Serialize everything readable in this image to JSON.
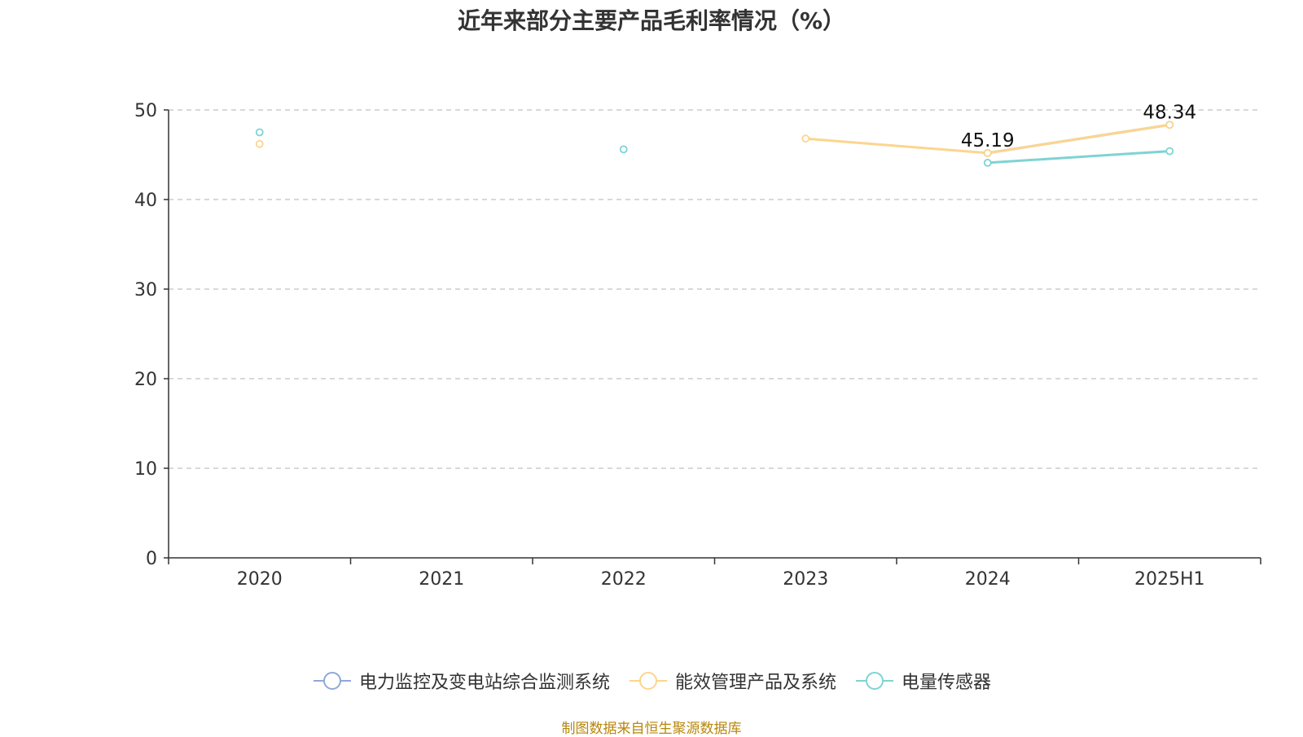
{
  "chart_data": {
    "type": "line",
    "title": "近年来部分主要产品毛利率情况（%）",
    "categories": [
      "2020",
      "2021",
      "2022",
      "2023",
      "2024",
      "2025H1"
    ],
    "ylim": [
      0,
      50
    ],
    "yticks": [
      0,
      10,
      20,
      30,
      40,
      50
    ],
    "grid": true,
    "legend_position": "bottom",
    "series": [
      {
        "name": "电力监控及变电站综合监测系统",
        "color": "#8fa9d8",
        "values": [
          null,
          null,
          null,
          null,
          45.19,
          48.34
        ]
      },
      {
        "name": "能效管理产品及系统",
        "color": "#fcd58e",
        "values": [
          46.2,
          null,
          null,
          46.8,
          45.19,
          48.34
        ]
      },
      {
        "name": "电量传感器",
        "color": "#7fd3d3",
        "values": [
          47.5,
          null,
          45.6,
          null,
          44.1,
          45.4
        ]
      }
    ],
    "data_labels": [
      {
        "category": "2024",
        "value": 45.19,
        "text": "45.19"
      },
      {
        "category": "2025H1",
        "value": 48.34,
        "text": "48.34"
      }
    ]
  },
  "source": "制图数据来自恒生聚源数据库"
}
